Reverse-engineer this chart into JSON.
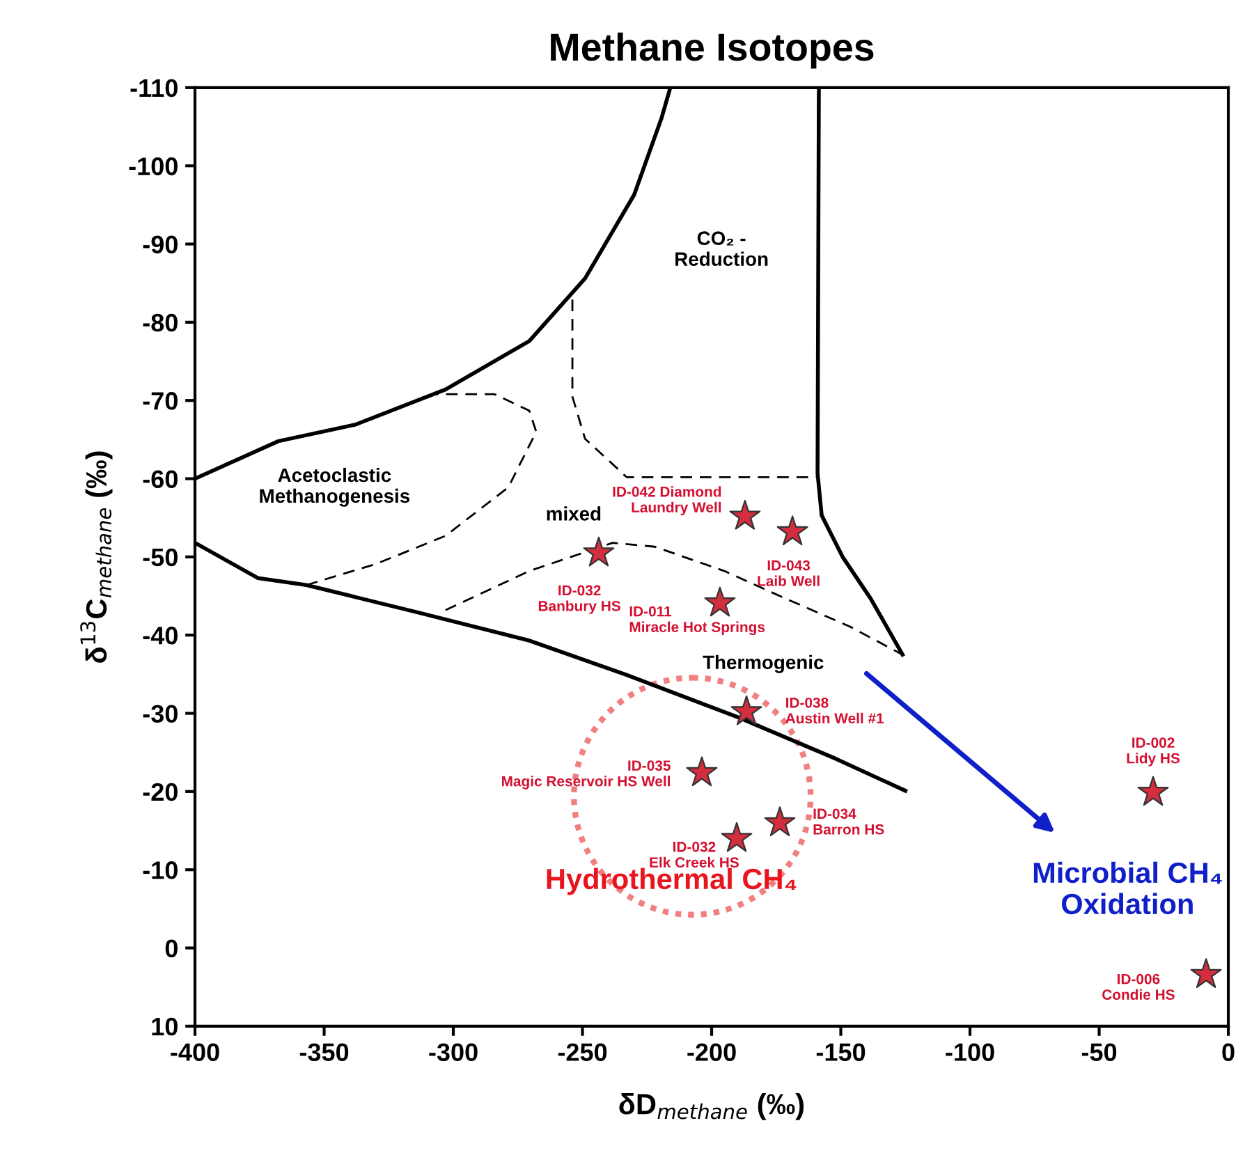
{
  "chart_data": {
    "type": "scatter",
    "title": "Methane Isotopes",
    "xlabel": "δD$_{methane}$ (‰)",
    "ylabel": "δ$^{13}$C$_{methane}$ (‰)",
    "xlim": [
      -400,
      0
    ],
    "ylim": [
      10,
      -110
    ],
    "xticks": [
      -400,
      -350,
      -300,
      -250,
      -200,
      -150,
      -100,
      -50,
      0
    ],
    "yticks": [
      -110,
      -100,
      -90,
      -80,
      -70,
      -60,
      -50,
      -40,
      -30,
      -20,
      -10,
      0,
      10
    ],
    "grid": false,
    "legend": false,
    "series": [
      {
        "type": "line",
        "color": "#000000",
        "line_style": "solid",
        "marker": "none",
        "x": [
          -400,
          -367.7,
          -338,
          -303,
          -270.6,
          -249,
          -230,
          -219.4,
          -216
        ],
        "values": [
          -60,
          -64.8,
          -66.9,
          -71.4,
          -77.6,
          -85.6,
          -96.3,
          -106.1,
          -110
        ]
      },
      {
        "type": "line",
        "color": "#000000",
        "line_style": "solid",
        "marker": "none",
        "x": [
          -158.5,
          -159,
          -157.4,
          -149.3,
          -138.5,
          -126.1
        ],
        "values": [
          -110,
          -60.7,
          -55.3,
          -50,
          -44.7,
          -37.5
        ]
      },
      {
        "type": "line",
        "color": "#000000",
        "line_style": "solid",
        "marker": "none",
        "x": [
          -400,
          -375.7,
          -356.9,
          -313.7,
          -270.6,
          -232.9,
          -189.8,
          -152,
          -125
        ],
        "values": [
          -51.8,
          -47.3,
          -46.4,
          -42.9,
          -39.3,
          -34.9,
          -29.5,
          -24.2,
          -20.1
        ]
      },
      {
        "type": "line",
        "color": "#000000",
        "line_style": "dashed",
        "marker": "none",
        "x": [
          -356.9,
          -329.9,
          -303,
          -278.7,
          -267.9,
          -270.6,
          -284,
          -308.4
        ],
        "values": [
          -46.4,
          -49.1,
          -52.7,
          -58.9,
          -66,
          -68.7,
          -70.8,
          -70.8
        ]
      },
      {
        "type": "line",
        "color": "#000000",
        "line_style": "dashed",
        "marker": "none",
        "x": [
          -253.9,
          -253.9,
          -249,
          -232.9,
          -158.5
        ],
        "values": [
          -82.9,
          -70.5,
          -65.1,
          -60.2,
          -60.2
        ]
      },
      {
        "type": "line",
        "color": "#000000",
        "line_style": "dashed",
        "marker": "none",
        "x": [
          -303,
          -270.6,
          -238.3,
          -222,
          -195.1,
          -173.6,
          -146.6,
          -126.1
        ],
        "values": [
          -43.2,
          -48.2,
          -51.8,
          -51.3,
          -48.2,
          -45,
          -41.1,
          -37.5
        ]
      },
      {
        "type": "scatter",
        "color": "#d42e3e",
        "marker": "star",
        "x": [
          -187.1,
          -168.7,
          -243.7,
          -196.8,
          -186.5,
          -203.8,
          -173.6,
          -190.3,
          -29.1,
          -8.6
        ],
        "values": [
          -55.2,
          -53.2,
          -50.5,
          -44.1,
          -30.2,
          -22.4,
          -16.0,
          -14.0,
          -19.9,
          3.4
        ]
      }
    ],
    "annotations": [
      {
        "text": "ID-042 Diamond\nLaundry Well",
        "x": -187.1,
        "y": -55.2
      },
      {
        "text": "ID-043\nLaib Well",
        "x": -168.7,
        "y": -53.2
      },
      {
        "text": "ID-032\nBanbury HS",
        "x": -243.7,
        "y": -50.5
      },
      {
        "text": "ID-011\nMiracle Hot Springs",
        "x": -196.8,
        "y": -44.1
      },
      {
        "text": "ID-038\nAustin Well #1",
        "x": -186.5,
        "y": -30.2
      },
      {
        "text": "ID-035\nMagic Reservoir HS Well",
        "x": -203.8,
        "y": -22.4
      },
      {
        "text": "ID-034\nBarron HS",
        "x": -173.6,
        "y": -16.0
      },
      {
        "text": "ID-032\nElk Creek HS",
        "x": -190.3,
        "y": -14.0
      },
      {
        "text": "ID-002\nLidy HS",
        "x": -29.1,
        "y": -19.9
      },
      {
        "text": "ID-006\nCondie HS",
        "x": -8.6,
        "y": 3.4
      },
      "CO₂ -\nReduction",
      "Acetoclastic\nMethanogenesis",
      "mixed",
      "Thermogenic",
      "Hydrothermal CH₄",
      "Microbial CH₄\nOxidation"
    ]
  }
}
